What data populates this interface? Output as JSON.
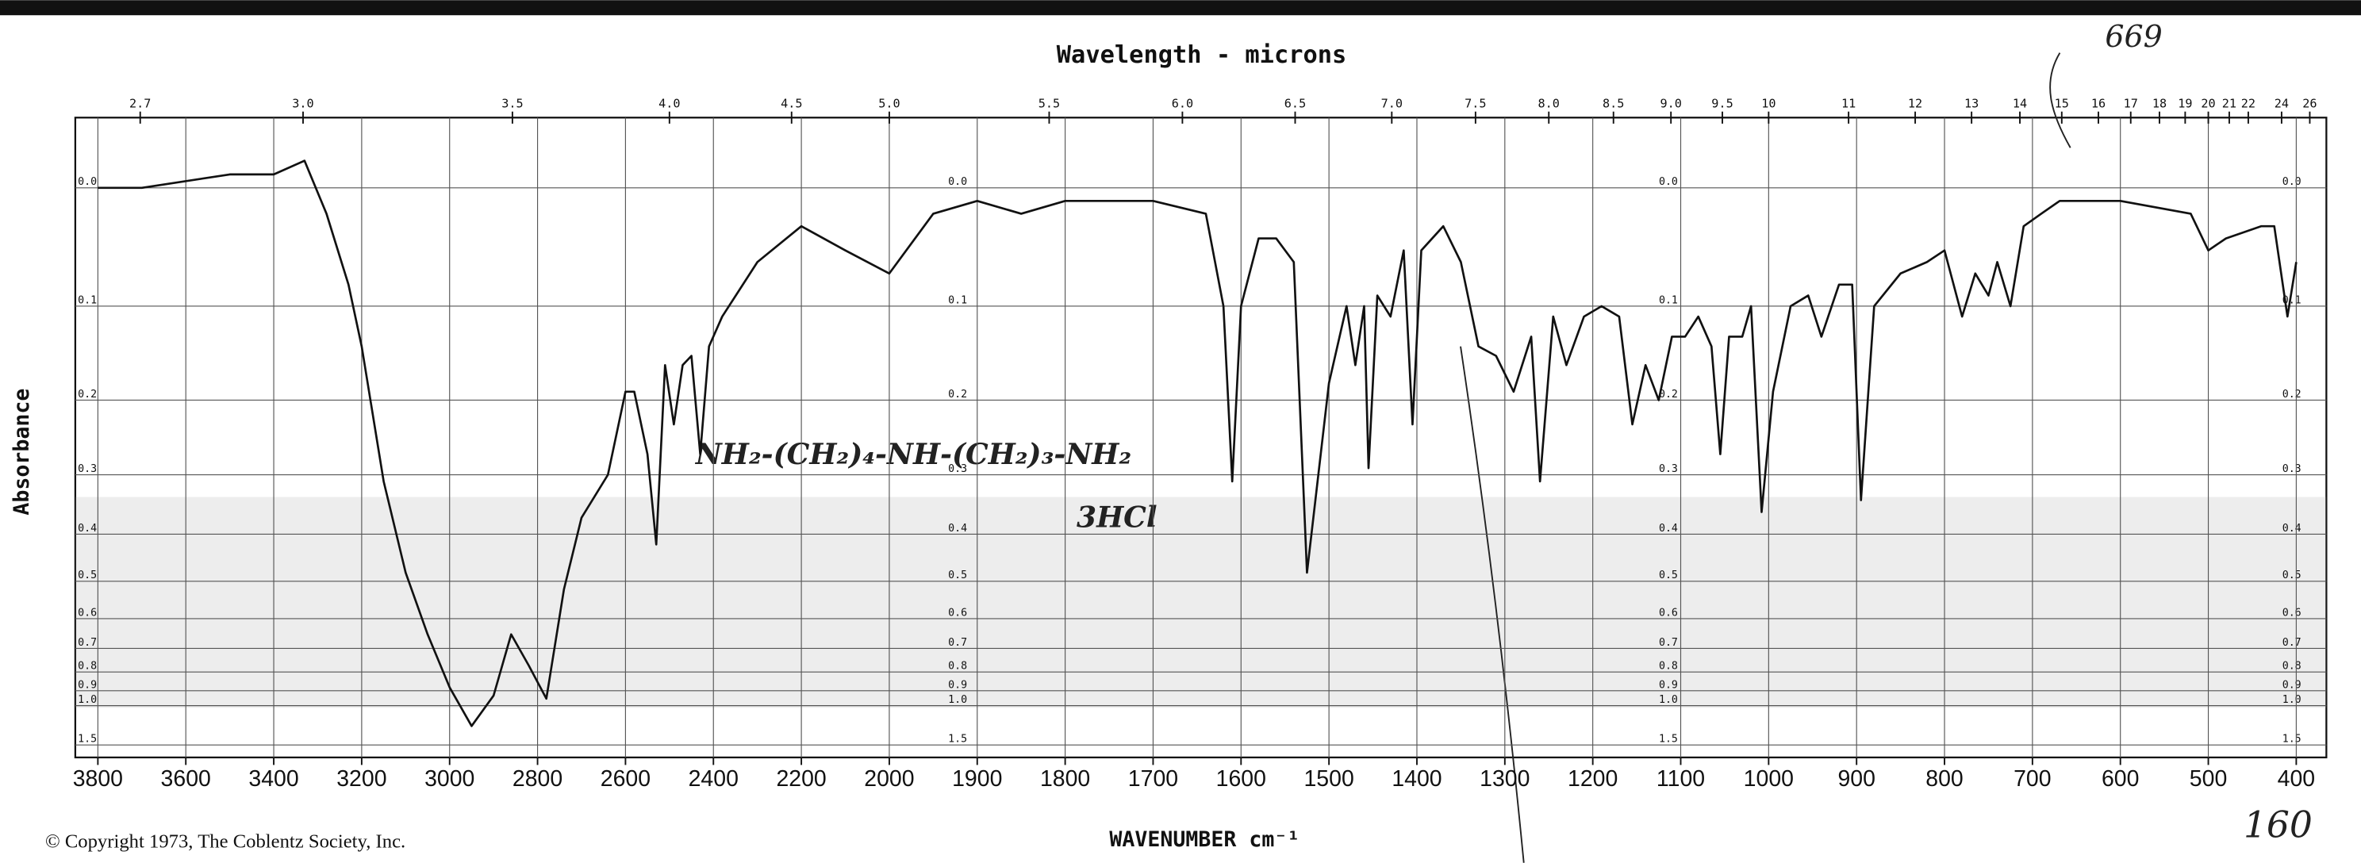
{
  "chart_data": {
    "type": "line",
    "title": "Wavelength - microns",
    "x_label": "WAVENUMBER cm⁻¹",
    "y_label": "Absorbance",
    "footnote": "© Copyright 1973, The Coblentz Society, Inc.",
    "annotations": [
      "669",
      "160",
      "NH₂-(CH₂)₄-NH-(CH₂)₃-NH₂",
      "3HCl"
    ],
    "color": "#111111",
    "grid": true,
    "yscale": "absorbance",
    "xlim": [
      3800,
      400
    ],
    "xticks": [
      3800,
      3600,
      3400,
      3200,
      3000,
      2800,
      2600,
      2400,
      2200,
      2000,
      1900,
      1800,
      1700,
      1600,
      1500,
      1400,
      1300,
      1200,
      1100,
      1000,
      900,
      800,
      700,
      600,
      500,
      400
    ],
    "x2ticks": [
      2.7,
      {
        "value": 3,
        "label": "3.0"
      },
      3.5,
      {
        "value": 4,
        "label": "4.0"
      },
      4.5,
      {
        "value": 5,
        "label": "5.0"
      },
      5.5,
      {
        "value": 6,
        "label": "6.0"
      },
      6.5,
      {
        "value": 7,
        "label": "7.0"
      },
      7.5,
      {
        "value": 8,
        "label": "8.0"
      },
      8.5,
      {
        "value": 9,
        "label": "9.0"
      },
      9.5,
      10,
      11,
      12,
      13,
      14,
      15,
      16,
      17,
      18,
      19,
      20,
      21,
      22,
      24,
      26
    ],
    "ylim": [
      -0.05,
      2.0
    ],
    "yticks": [
      {
        "value": 0,
        "label": "0.0"
      },
      0.1,
      0.2,
      0.3,
      0.4,
      0.5,
      0.6,
      0.7,
      0.8,
      0.9,
      {
        "value": 1,
        "label": "1.0"
      },
      1.5
    ],
    "x": [
      3800,
      3700,
      3500,
      3400,
      3330,
      3280,
      3230,
      3200,
      3150,
      3100,
      3050,
      3000,
      2950,
      2900,
      2860,
      2820,
      2780,
      2740,
      2700,
      2640,
      2600,
      2580,
      2550,
      2530,
      2510,
      2490,
      2470,
      2450,
      2430,
      2410,
      2380,
      2300,
      2200,
      2100,
      2000,
      1950,
      1900,
      1850,
      1800,
      1700,
      1640,
      1620,
      1610,
      1600,
      1580,
      1560,
      1540,
      1525,
      1500,
      1480,
      1470,
      1460,
      1455,
      1445,
      1430,
      1415,
      1405,
      1395,
      1370,
      1350,
      1330,
      1310,
      1290,
      1270,
      1260,
      1245,
      1230,
      1210,
      1190,
      1170,
      1155,
      1140,
      1125,
      1110,
      1095,
      1080,
      1065,
      1055,
      1045,
      1030,
      1020,
      1008,
      995,
      975,
      955,
      940,
      920,
      905,
      895,
      880,
      850,
      820,
      800,
      780,
      765,
      750,
      740,
      725,
      710,
      690,
      669,
      640,
      600,
      520,
      500,
      480,
      440,
      425,
      410,
      400
    ],
    "values": [
      0.0,
      0.0,
      -0.01,
      -0.01,
      -0.02,
      0.02,
      0.08,
      0.14,
      0.31,
      0.48,
      0.65,
      0.88,
      1.19,
      0.93,
      0.65,
      0.77,
      0.95,
      0.52,
      0.37,
      0.3,
      0.19,
      0.19,
      0.27,
      0.42,
      0.16,
      0.23,
      0.16,
      0.15,
      0.27,
      0.14,
      0.11,
      0.06,
      0.03,
      0.05,
      0.07,
      0.02,
      0.01,
      0.02,
      0.01,
      0.01,
      0.02,
      0.1,
      0.31,
      0.1,
      0.04,
      0.04,
      0.06,
      0.48,
      0.18,
      0.1,
      0.16,
      0.1,
      0.29,
      0.09,
      0.11,
      0.05,
      0.23,
      0.05,
      0.03,
      0.06,
      0.14,
      0.15,
      0.19,
      0.13,
      0.31,
      0.11,
      0.16,
      0.11,
      0.1,
      0.11,
      0.23,
      0.16,
      0.2,
      0.13,
      0.13,
      0.11,
      0.14,
      0.27,
      0.13,
      0.13,
      0.1,
      0.36,
      0.19,
      0.1,
      0.09,
      0.13,
      0.08,
      0.08,
      0.34,
      0.1,
      0.07,
      0.06,
      0.05,
      0.11,
      0.07,
      0.09,
      0.06,
      0.1,
      0.03,
      0.02,
      0.01,
      0.01,
      0.01,
      0.02,
      0.05,
      0.04,
      0.03,
      0.03,
      0.11,
      0.06
    ]
  }
}
